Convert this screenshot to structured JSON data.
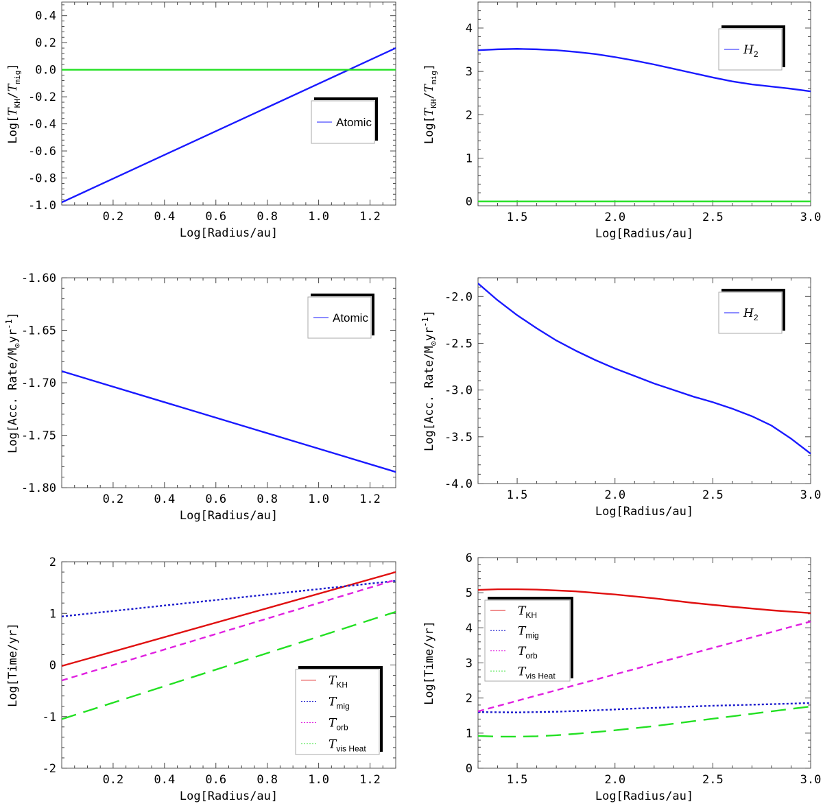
{
  "chart_data": [
    {
      "type": "line",
      "xlabel": "Log[Radius/au]",
      "ylabel_pre": "Log[",
      "ylabel_t1": "T",
      "ylabel_s1": "KH",
      "ylabel_mid": "/",
      "ylabel_t2": "T",
      "ylabel_s2": "mig",
      "ylabel_post": "]",
      "xlim": [
        0.0,
        1.3
      ],
      "ylim": [
        -1.0,
        0.5
      ],
      "xticks": [
        0.2,
        0.4,
        0.6,
        0.8,
        1.0,
        1.2
      ],
      "xtick_labels": [
        "0.2",
        "0.4",
        "0.6",
        "0.8",
        "1.0",
        "1.2"
      ],
      "yticks": [
        -1.0,
        -0.8,
        -0.6,
        -0.4,
        -0.2,
        0.0,
        0.2,
        0.4
      ],
      "ytick_labels": [
        "-1.0",
        "-0.8",
        "-0.6",
        "-0.4",
        "-0.2",
        "0.0",
        "0.2",
        "0.4"
      ],
      "series": [
        {
          "name": "Atomic",
          "color": "#1a1aff",
          "dash": "",
          "x": [
            0.0,
            1.3
          ],
          "y": [
            -0.98,
            0.16
          ]
        },
        {
          "color": "#22e022",
          "dash": "",
          "x": [
            0.0,
            1.3
          ],
          "y": [
            0.0,
            0.0
          ]
        }
      ],
      "legend": {
        "placement": "center-right",
        "entries": [
          {
            "text": "Atomic"
          }
        ]
      }
    },
    {
      "type": "line",
      "xlabel": "Log[Radius/au]",
      "ylabel_pre": "Log[",
      "ylabel_t1": "T",
      "ylabel_s1": "KH",
      "ylabel_mid": "/",
      "ylabel_t2": "T",
      "ylabel_s2": "mig",
      "ylabel_post": "]",
      "xlim": [
        1.3,
        3.0
      ],
      "ylim": [
        -0.1,
        4.6
      ],
      "xticks": [
        1.5,
        2.0,
        2.5,
        3.0
      ],
      "xtick_labels": [
        "1.5",
        "2.0",
        "2.5",
        "3.0"
      ],
      "yticks": [
        0,
        1,
        2,
        3,
        4
      ],
      "ytick_labels": [
        "0",
        "1",
        "2",
        "3",
        "4"
      ],
      "series": [
        {
          "name": "H2",
          "color": "#1a1aff",
          "dash": "",
          "x": [
            1.3,
            1.4,
            1.5,
            1.6,
            1.7,
            1.8,
            1.9,
            2.0,
            2.1,
            2.2,
            2.3,
            2.4,
            2.5,
            2.6,
            2.7,
            2.8,
            2.9,
            3.0
          ],
          "y": [
            3.49,
            3.51,
            3.52,
            3.51,
            3.49,
            3.45,
            3.4,
            3.33,
            3.25,
            3.16,
            3.06,
            2.96,
            2.86,
            2.77,
            2.7,
            2.65,
            2.6,
            2.54
          ]
        },
        {
          "color": "#22e022",
          "dash": "",
          "x": [
            1.3,
            3.0
          ],
          "y": [
            0.0,
            0.0
          ]
        }
      ],
      "legend": {
        "placement": "top-right",
        "entries": [
          {
            "text": "H",
            "sub": "2"
          }
        ]
      }
    },
    {
      "type": "line",
      "xlabel": "Log[Radius/au]",
      "ylabel_pre": "Log[Acc. Rate/M",
      "ylabel_s1": "⊙",
      "ylabel_mid": "yr",
      "ylabel_sup": "-1",
      "ylabel_post": "]",
      "xlim": [
        0.0,
        1.3
      ],
      "ylim": [
        -1.8,
        -1.6
      ],
      "xticks": [
        0.2,
        0.4,
        0.6,
        0.8,
        1.0,
        1.2
      ],
      "xtick_labels": [
        "0.2",
        "0.4",
        "0.6",
        "0.8",
        "1.0",
        "1.2"
      ],
      "yticks": [
        -1.8,
        -1.75,
        -1.7,
        -1.65,
        -1.6
      ],
      "ytick_labels": [
        "-1.80",
        "-1.75",
        "-1.70",
        "-1.65",
        "-1.60"
      ],
      "series": [
        {
          "name": "Atomic",
          "color": "#1a1aff",
          "dash": "",
          "x": [
            0.0,
            1.3
          ],
          "y": [
            -1.689,
            -1.785
          ]
        }
      ],
      "legend": {
        "placement": "top-right",
        "entries": [
          {
            "text": "Atomic"
          }
        ]
      }
    },
    {
      "type": "line",
      "xlabel": "Log[Radius/au]",
      "ylabel_pre": "Log[Acc. Rate/M",
      "ylabel_s1": "⊙",
      "ylabel_mid": "yr",
      "ylabel_sup": "-1",
      "ylabel_post": "]",
      "xlim": [
        1.3,
        3.0
      ],
      "ylim": [
        -4.0,
        -1.8
      ],
      "xticks": [
        1.5,
        2.0,
        2.5,
        3.0
      ],
      "xtick_labels": [
        "1.5",
        "2.0",
        "2.5",
        "3.0"
      ],
      "yticks": [
        -4.0,
        -3.5,
        -3.0,
        -2.5,
        -2.0
      ],
      "ytick_labels": [
        "-4.0",
        "-3.5",
        "-3.0",
        "-2.5",
        "-2.0"
      ],
      "series": [
        {
          "name": "H2",
          "color": "#1a1aff",
          "dash": "",
          "x": [
            1.3,
            1.4,
            1.5,
            1.6,
            1.7,
            1.8,
            1.9,
            2.0,
            2.1,
            2.2,
            2.3,
            2.4,
            2.5,
            2.6,
            2.7,
            2.8,
            2.9,
            3.0
          ],
          "y": [
            -1.86,
            -2.04,
            -2.2,
            -2.34,
            -2.47,
            -2.58,
            -2.68,
            -2.77,
            -2.85,
            -2.93,
            -3.0,
            -3.07,
            -3.13,
            -3.2,
            -3.28,
            -3.38,
            -3.52,
            -3.68
          ]
        }
      ],
      "legend": {
        "placement": "top-right",
        "entries": [
          {
            "text": "H",
            "sub": "2"
          }
        ]
      }
    },
    {
      "type": "line",
      "xlabel": "Log[Radius/au]",
      "ylabel_pre": "Log[Time/yr]",
      "xlim": [
        0.0,
        1.3
      ],
      "ylim": [
        -2.0,
        2.0
      ],
      "xticks": [
        0.2,
        0.4,
        0.6,
        0.8,
        1.0,
        1.2
      ],
      "xtick_labels": [
        "0.2",
        "0.4",
        "0.6",
        "0.8",
        "1.0",
        "1.2"
      ],
      "yticks": [
        -2,
        -1,
        0,
        1,
        2
      ],
      "ytick_labels": [
        "-2",
        "-1",
        "0",
        "1",
        "2"
      ],
      "series": [
        {
          "name": "T_KH",
          "color": "#e01010",
          "dash": "",
          "x": [
            0.0,
            1.3
          ],
          "y": [
            -0.02,
            1.8
          ]
        },
        {
          "name": "T_mig",
          "color": "#1a1acc",
          "dash": "3,3",
          "x": [
            0.0,
            1.3
          ],
          "y": [
            0.94,
            1.63
          ]
        },
        {
          "name": "T_orb",
          "color": "#e020e0",
          "dash": "9,6",
          "x": [
            0.0,
            1.3
          ],
          "y": [
            -0.3,
            1.65
          ]
        },
        {
          "name": "T_visHeat",
          "color": "#22e022",
          "dash": "22,11",
          "x": [
            0.0,
            1.3
          ],
          "y": [
            -1.05,
            1.03
          ]
        }
      ],
      "legend": {
        "placement": "bottom-right",
        "entries": [
          {
            "text": "T",
            "sub": "KH"
          },
          {
            "text": "T",
            "sub": "mig"
          },
          {
            "text": "T",
            "sub": "orb"
          },
          {
            "text": "T",
            "sub": "vis Heat"
          }
        ]
      }
    },
    {
      "type": "line",
      "xlabel": "Log[Radius/au]",
      "ylabel_pre": "Log[Time/yr]",
      "xlim": [
        1.3,
        3.0
      ],
      "ylim": [
        0.0,
        6.0
      ],
      "xticks": [
        1.5,
        2.0,
        2.5,
        3.0
      ],
      "xtick_labels": [
        "1.5",
        "2.0",
        "2.5",
        "3.0"
      ],
      "yticks": [
        0,
        1,
        2,
        3,
        4,
        5,
        6
      ],
      "ytick_labels": [
        "0",
        "1",
        "2",
        "3",
        "4",
        "5",
        "6"
      ],
      "series": [
        {
          "name": "T_KH",
          "color": "#e01010",
          "dash": "",
          "x": [
            1.3,
            1.4,
            1.5,
            1.6,
            1.8,
            2.0,
            2.2,
            2.4,
            2.6,
            2.8,
            3.0
          ],
          "y": [
            5.08,
            5.1,
            5.1,
            5.09,
            5.04,
            4.95,
            4.84,
            4.71,
            4.6,
            4.5,
            4.42
          ]
        },
        {
          "name": "T_mig",
          "color": "#1a1acc",
          "dash": "3,3",
          "x": [
            1.3,
            1.5,
            1.7,
            1.9,
            2.1,
            2.3,
            2.5,
            2.7,
            2.9,
            3.0
          ],
          "y": [
            1.6,
            1.59,
            1.61,
            1.65,
            1.7,
            1.74,
            1.78,
            1.81,
            1.84,
            1.86
          ]
        },
        {
          "name": "T_orb",
          "color": "#e020e0",
          "dash": "9,6",
          "x": [
            1.3,
            3.0
          ],
          "y": [
            1.62,
            4.18
          ]
        },
        {
          "name": "T_visHeat",
          "color": "#22e022",
          "dash": "22,11",
          "x": [
            1.3,
            1.4,
            1.5,
            1.6,
            1.7,
            1.8,
            2.0,
            2.2,
            2.4,
            2.6,
            2.8,
            3.0
          ],
          "y": [
            0.92,
            0.9,
            0.9,
            0.91,
            0.94,
            0.98,
            1.08,
            1.2,
            1.34,
            1.48,
            1.62,
            1.76
          ]
        }
      ],
      "legend": {
        "placement": "top-left",
        "entries": [
          {
            "text": "T",
            "sub": "KH"
          },
          {
            "text": "T",
            "sub": "mig"
          },
          {
            "text": "T",
            "sub": "orb"
          },
          {
            "text": "T",
            "sub": "vis Heat"
          }
        ]
      }
    }
  ]
}
